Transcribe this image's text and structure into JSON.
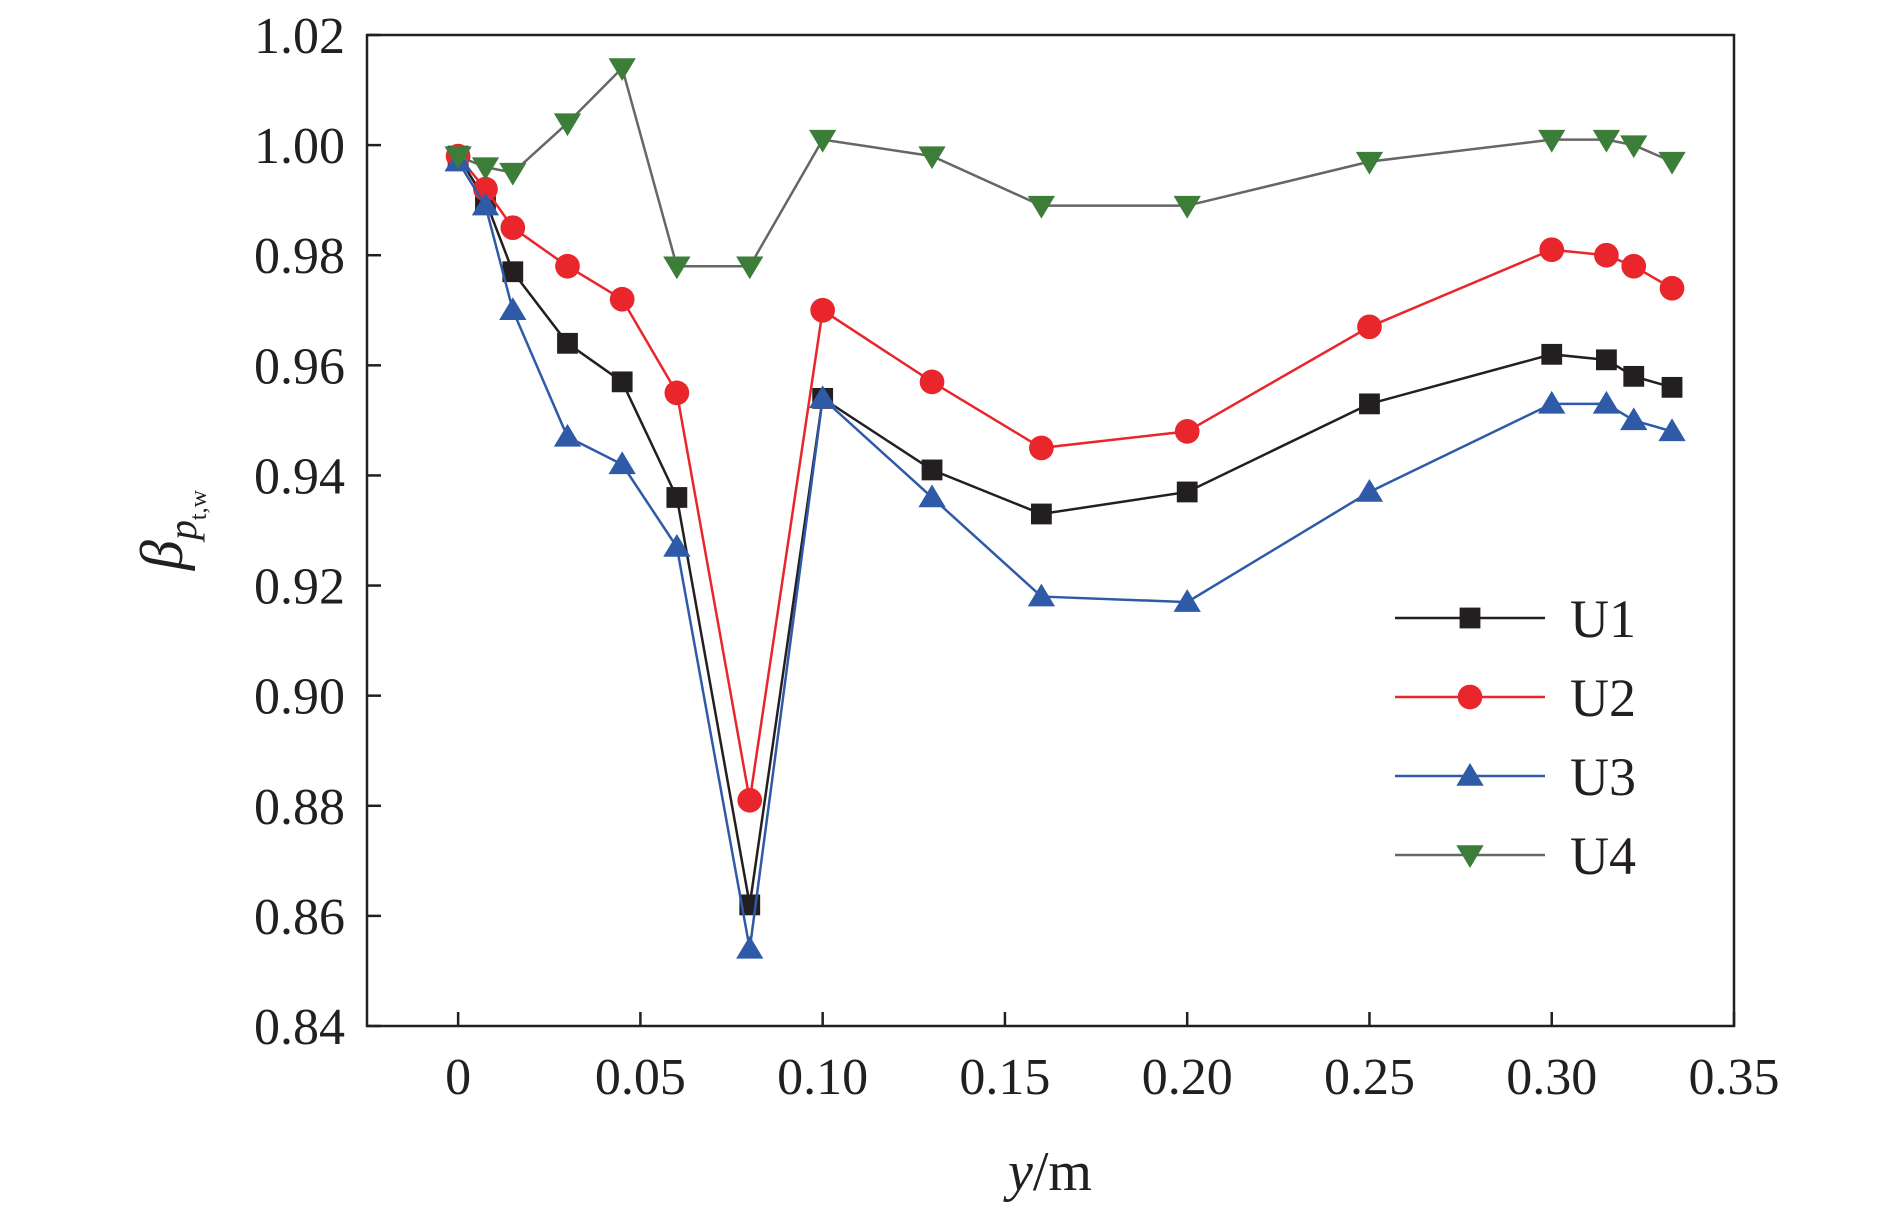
{
  "chart_data": {
    "type": "line",
    "xlabel_var": "y",
    "xlabel_unit": "/m",
    "ylabel_symbol": "β",
    "ylabel_sub": "p",
    "ylabel_subsub": "t,w",
    "xlim": [
      -0.025,
      0.35
    ],
    "ylim": [
      0.84,
      1.02
    ],
    "xticks": [
      0,
      0.05,
      0.1,
      0.15,
      0.2,
      0.25,
      0.3,
      0.35
    ],
    "xtick_labels": [
      "0",
      "0.05",
      "0.10",
      "0.15",
      "0.20",
      "0.25",
      "0.30",
      "0.35"
    ],
    "yticks": [
      0.84,
      0.86,
      0.88,
      0.9,
      0.92,
      0.94,
      0.96,
      0.98,
      1.0,
      1.02
    ],
    "ytick_labels": [
      "0.84",
      "0.86",
      "0.88",
      "0.90",
      "0.92",
      "0.94",
      "0.96",
      "0.98",
      "1.00",
      "1.02"
    ],
    "grid": false,
    "legend_position": "right",
    "x": [
      0,
      0.0075,
      0.015,
      0.03,
      0.045,
      0.06,
      0.08,
      0.1,
      0.13,
      0.16,
      0.2,
      0.25,
      0.3,
      0.315,
      0.3225,
      0.333
    ],
    "series": [
      {
        "name": "U1",
        "color": "#231f20",
        "marker": "square",
        "values": [
          0.998,
          0.99,
          0.977,
          0.964,
          0.957,
          0.936,
          0.862,
          0.954,
          0.941,
          0.933,
          0.937,
          0.953,
          0.962,
          0.961,
          0.958,
          0.956
        ]
      },
      {
        "name": "U2",
        "color": "#e8262b",
        "marker": "circle",
        "values": [
          0.998,
          0.992,
          0.985,
          0.978,
          0.972,
          0.955,
          0.881,
          0.97,
          0.957,
          0.945,
          0.948,
          0.967,
          0.981,
          0.98,
          0.978,
          0.974
        ]
      },
      {
        "name": "U3",
        "color": "#2e5aa8",
        "marker": "triangle-up",
        "values": [
          0.997,
          0.989,
          0.97,
          0.947,
          0.942,
          0.927,
          0.854,
          0.954,
          0.936,
          0.918,
          0.917,
          0.937,
          0.953,
          0.953,
          0.95,
          0.948
        ]
      },
      {
        "name": "U4",
        "color": "#666666",
        "markerColor": "#3d7d3a",
        "marker": "triangle-down",
        "values": [
          0.998,
          0.996,
          0.995,
          1.004,
          1.014,
          0.978,
          0.978,
          1.001,
          0.998,
          0.989,
          0.989,
          0.997,
          1.001,
          1.001,
          1.0,
          0.997
        ]
      }
    ]
  }
}
